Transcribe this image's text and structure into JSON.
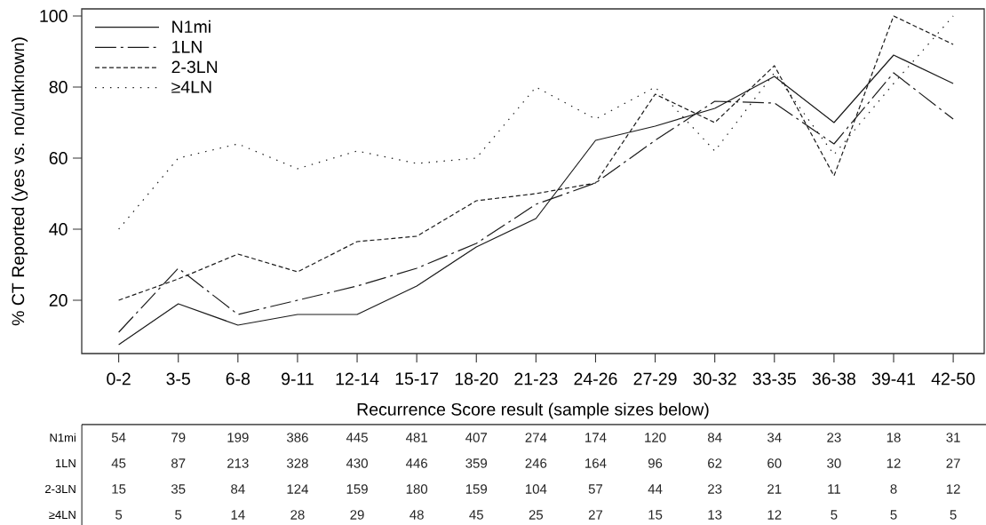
{
  "chart_data": {
    "type": "line",
    "ylabel": "% CT Reported (yes vs. no/unknown)",
    "xlabel": "Recurrence Score result (sample sizes below)",
    "categories": [
      "0-2",
      "3-5",
      "6-8",
      "9-11",
      "12-14",
      "15-17",
      "18-20",
      "21-23",
      "24-26",
      "27-29",
      "30-32",
      "33-35",
      "36-38",
      "39-41",
      "42-50"
    ],
    "ylim": [
      5,
      102
    ],
    "yticks": [
      20,
      40,
      60,
      80,
      100
    ],
    "legend": "top left",
    "series": [
      {
        "name": "N1mi",
        "color": "#1a1a1a",
        "line_style": "solid",
        "values": [
          7.5,
          19,
          13,
          16,
          16,
          24,
          35,
          43,
          65,
          69,
          74,
          83,
          70,
          89,
          81
        ]
      },
      {
        "name": "1LN",
        "color": "#1a1a1a",
        "line_style": "dashdot",
        "values": [
          11,
          29,
          16,
          20,
          24,
          29,
          36,
          47,
          53,
          65,
          76,
          75.5,
          64,
          84,
          71
        ]
      },
      {
        "name": "2-3LN",
        "color": "#1a1a1a",
        "line_style": "dashed",
        "values": [
          20,
          26,
          33,
          28,
          36.5,
          38,
          48,
          50,
          53,
          78,
          70,
          86,
          55,
          100,
          92
        ]
      },
      {
        "name": "≥4LN",
        "color": "#1a1a1a",
        "line_style": "dotted",
        "values": [
          40,
          60,
          64,
          57,
          62,
          58.5,
          60,
          80,
          71,
          80,
          62,
          84,
          61,
          81,
          100
        ]
      }
    ],
    "annotations": [
      "54",
      "79",
      "199",
      "386",
      "445",
      "481",
      "407",
      "274",
      "174",
      "120",
      "84",
      "34",
      "23",
      "18",
      "31",
      "45",
      "87",
      "213",
      "328",
      "430",
      "446",
      "359",
      "246",
      "164",
      "96",
      "62",
      "60",
      "30",
      "12",
      "27",
      "15",
      "35",
      "84",
      "124",
      "159",
      "180",
      "159",
      "104",
      "57",
      "44",
      "23",
      "21",
      "11",
      "8",
      "12",
      "5",
      "5",
      "14",
      "28",
      "29",
      "48",
      "45",
      "25",
      "27",
      "15",
      "13",
      "12",
      "5",
      "5",
      "5"
    ]
  }
}
